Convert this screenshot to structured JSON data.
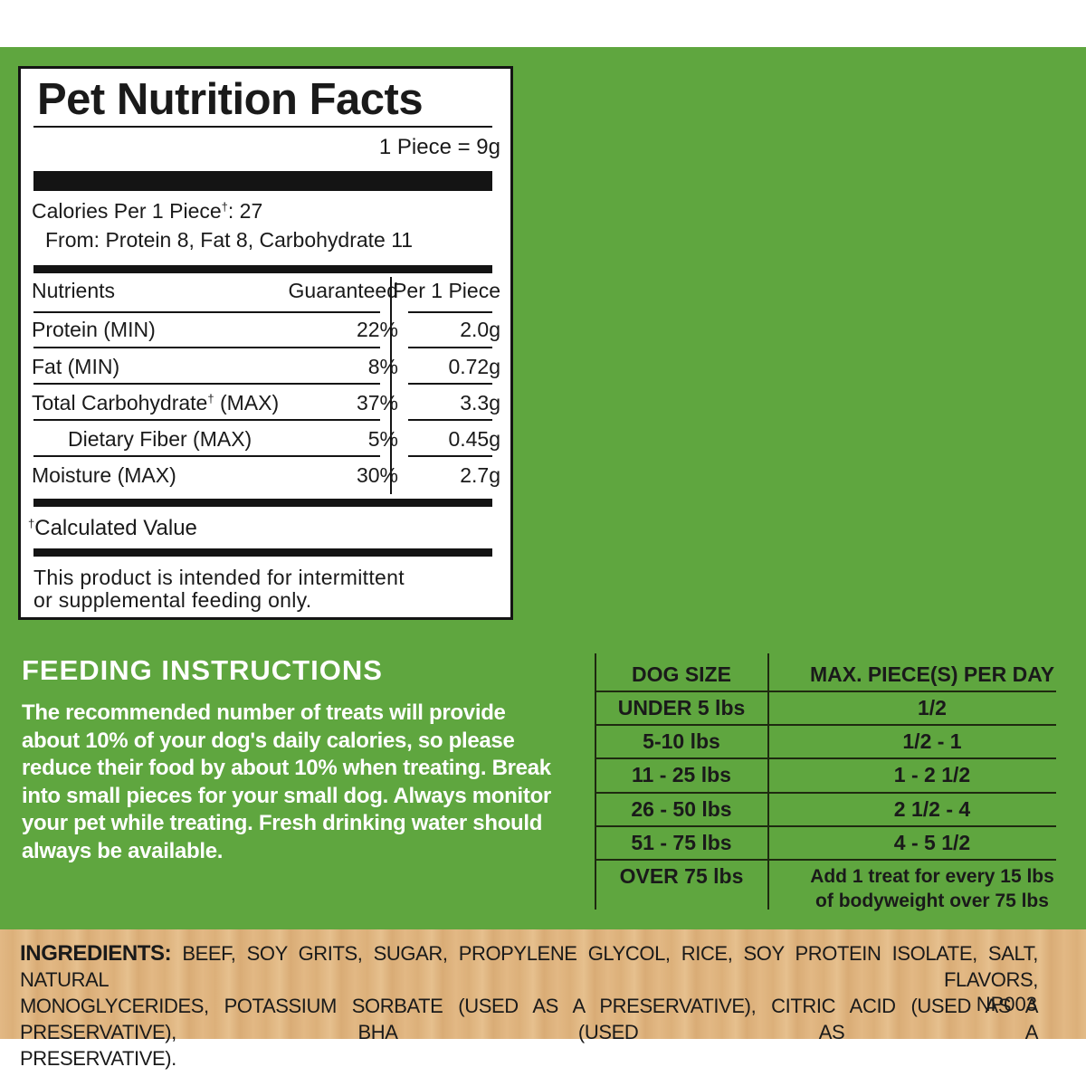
{
  "nutrition": {
    "title": "Pet Nutrition Facts",
    "serving": "1 Piece = 9g",
    "calories_label": "Calories Per 1 Piece",
    "dagger": "†",
    "calories_value": ": 27",
    "calories_from": "From: Protein 8, Fat 8, Carbohydrate 11",
    "headers": {
      "nutrients": "Nutrients",
      "guaranteed": "Guaranteed",
      "per_piece": "Per 1 Piece"
    },
    "rows": [
      {
        "label": "Protein (MIN)",
        "guaranteed": "22%",
        "per_piece": "2.0g"
      },
      {
        "label": "Fat (MIN)",
        "guaranteed": "8%",
        "per_piece": "0.72g"
      },
      {
        "label": "Total Carbohydrate",
        "label_suffix": " (MAX)",
        "guaranteed": "37%",
        "per_piece": "3.3g"
      },
      {
        "label": "Dietary Fiber (MAX)",
        "guaranteed": "5%",
        "per_piece": "0.45g"
      },
      {
        "label": "Moisture (MAX)",
        "guaranteed": "30%",
        "per_piece": "2.7g"
      }
    ],
    "calculated": "Calculated Value",
    "note_line1": "This product is intended for intermittent",
    "note_line2": "or supplemental feeding only."
  },
  "feeding": {
    "title": "FEEDING INSTRUCTIONS",
    "text": "The recommended number of treats will provide about 10% of your dog's daily calories, so please reduce their food by about 10% when treating. Break into small pieces for your small dog. Always monitor your pet while treating. Fresh drinking water should always be available.",
    "table": {
      "col1": "DOG SIZE",
      "col2": "MAX. PIECE(S) PER DAY",
      "rows": [
        {
          "size": "UNDER 5 lbs",
          "max": "1/2"
        },
        {
          "size": "5-10 lbs",
          "max": "1/2 - 1"
        },
        {
          "size": "11 - 25 lbs",
          "max": "1 - 2 1/2"
        },
        {
          "size": "26 - 50 lbs",
          "max": "2 1/2 - 4"
        },
        {
          "size": "51 - 75 lbs",
          "max": "4 - 5 1/2"
        },
        {
          "size": "OVER 75 lbs",
          "max_line1": "Add 1 treat for every 15 lbs",
          "max_line2": "of bodyweight over 75 lbs"
        }
      ]
    }
  },
  "ingredients": {
    "label": "INGREDIENTS:",
    "line1": "BEEF, SOY GRITS, SUGAR, PROPYLENE GLYCOL, RICE, SOY PROTEIN ISOLATE, SALT, NATURAL FLAVORS,",
    "line2": "MONOGLYCERIDES, POTASSIUM SORBATE (USED AS A PRESERVATIVE), CITRIC ACID (USED AS A PRESERVATIVE), BHA (USED AS A",
    "line3": "PRESERVATIVE).",
    "code": "NP003"
  },
  "colors": {
    "green": "#5fa63f",
    "wood": "#e2b884",
    "ink": "#141414"
  }
}
